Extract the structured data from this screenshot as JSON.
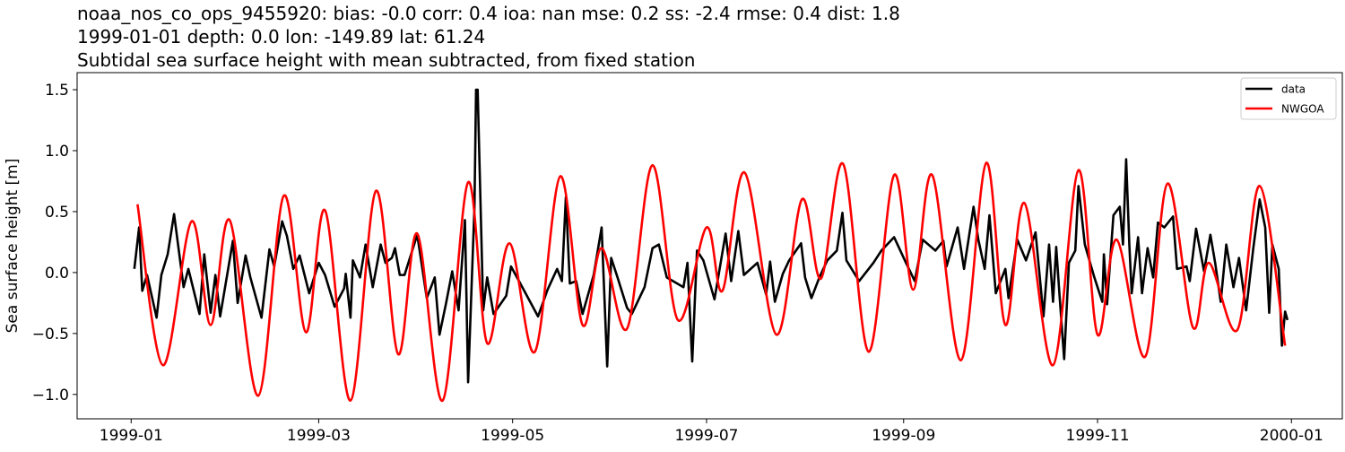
{
  "chart_data": {
    "type": "line",
    "title_lines": [
      "noaa_nos_co_ops_9455920: bias: -0.0  corr: 0.4  ioa: nan  mse: 0.2  ss: -2.4  rmse: 0.4  dist: 1.8",
      "1999-01-01 depth: 0.0 lon: -149.89 lat: 61.24",
      "Subtidal sea surface height with mean subtracted, from fixed station"
    ],
    "xlabel": "",
    "ylabel": "Sea surface height [m]",
    "xlim": [
      "1998-12-15",
      "2000-01-17"
    ],
    "ylim": [
      -1.2,
      1.64
    ],
    "xticks": [
      "1999-01",
      "1999-03",
      "1999-05",
      "1999-07",
      "1999-09",
      "1999-11",
      "2000-01"
    ],
    "yticks": [
      -1.0,
      -0.5,
      0.0,
      0.5,
      1.0,
      1.5
    ],
    "ytick_labels": [
      "−1.0",
      "−0.5",
      "0.0",
      "0.5",
      "1.0",
      "1.5"
    ],
    "grid": false,
    "legend_position": "top-right",
    "series": [
      {
        "name": "data",
        "color": "#000000",
        "points": [
          [
            "1999-01-02",
            0.03
          ],
          [
            "1999-01-03T12:00",
            0.37
          ],
          [
            "1999-01-04T12:00",
            -0.15
          ],
          [
            "1999-01-06",
            -0.02
          ],
          [
            "1999-01-09",
            -0.37
          ],
          [
            "1999-01-10T12:00",
            -0.02
          ],
          [
            "1999-01-12T12:00",
            0.15
          ],
          [
            "1999-01-14T12:00",
            0.48
          ],
          [
            "1999-01-16",
            0.18
          ],
          [
            "1999-01-17T12:00",
            -0.12
          ],
          [
            "1999-01-19",
            0.03
          ],
          [
            "1999-01-22T12:00",
            -0.34
          ],
          [
            "1999-01-24",
            0.15
          ],
          [
            "1999-01-26",
            -0.33
          ],
          [
            "1999-01-27T12:00",
            -0.02
          ],
          [
            "1999-01-29",
            -0.36
          ],
          [
            "1999-02-02",
            0.26
          ],
          [
            "1999-02-03T12:00",
            -0.25
          ],
          [
            "1999-02-06",
            0.14
          ],
          [
            "1999-02-07T12:00",
            -0.04
          ],
          [
            "1999-02-11",
            -0.37
          ],
          [
            "1999-02-13T12:00",
            0.19
          ],
          [
            "1999-02-15",
            0.05
          ],
          [
            "1999-02-17T12:00",
            0.42
          ],
          [
            "1999-02-19",
            0.3
          ],
          [
            "1999-02-21",
            0.03
          ],
          [
            "1999-02-23",
            0.14
          ],
          [
            "1999-02-26",
            -0.17
          ],
          [
            "1999-03-01",
            0.08
          ],
          [
            "1999-03-03",
            -0.02
          ],
          [
            "1999-03-06",
            -0.28
          ],
          [
            "1999-03-09",
            -0.13
          ],
          [
            "1999-03-09T12:00",
            -0.01
          ],
          [
            "1999-03-11",
            -0.37
          ],
          [
            "1999-03-11T18:00",
            0.1
          ],
          [
            "1999-03-14",
            -0.04
          ],
          [
            "1999-03-15T18:00",
            0.23
          ],
          [
            "1999-03-18",
            -0.12
          ],
          [
            "1999-03-20T12:00",
            0.23
          ],
          [
            "1999-03-22",
            0.08
          ],
          [
            "1999-03-24",
            0.12
          ],
          [
            "1999-03-25",
            0.2
          ],
          [
            "1999-03-26T12:00",
            -0.02
          ],
          [
            "1999-03-28",
            -0.02
          ],
          [
            "1999-04-01",
            0.31
          ],
          [
            "1999-04-04",
            -0.21
          ],
          [
            "1999-04-06T12:00",
            -0.04
          ],
          [
            "1999-04-08",
            -0.51
          ],
          [
            "1999-04-10",
            -0.26
          ],
          [
            "1999-04-12",
            0.01
          ],
          [
            "1999-04-14",
            -0.31
          ],
          [
            "1999-04-16",
            0.43
          ],
          [
            "1999-04-17",
            -0.9
          ],
          [
            "1999-04-19",
            0.54
          ],
          [
            "1999-04-19T12:00",
            1.5
          ],
          [
            "1999-04-20",
            1.5
          ],
          [
            "1999-04-21T18:00",
            -0.31
          ],
          [
            "1999-04-23",
            -0.04
          ],
          [
            "1999-04-25",
            -0.34
          ],
          [
            "1999-04-29",
            -0.19
          ],
          [
            "1999-04-30T12:00",
            0.05
          ],
          [
            "1999-05-03",
            -0.07
          ],
          [
            "1999-05-09",
            -0.36
          ],
          [
            "1999-05-12",
            -0.14
          ],
          [
            "1999-05-15",
            0.03
          ],
          [
            "1999-05-16T12:00",
            -0.07
          ],
          [
            "1999-05-17T18:00",
            0.62
          ],
          [
            "1999-05-19",
            -0.09
          ],
          [
            "1999-05-21",
            -0.07
          ],
          [
            "1999-05-23",
            -0.34
          ],
          [
            "1999-05-26T12:00",
            -0.02
          ],
          [
            "1999-05-29",
            0.37
          ],
          [
            "1999-05-30T18:00",
            -0.77
          ],
          [
            "1999-06-01",
            0.12
          ],
          [
            "1999-06-03",
            -0.04
          ],
          [
            "1999-06-06",
            -0.29
          ],
          [
            "1999-06-07T12:00",
            -0.34
          ],
          [
            "1999-06-11T12:00",
            -0.12
          ],
          [
            "1999-06-14",
            0.2
          ],
          [
            "1999-06-16",
            0.23
          ],
          [
            "1999-06-18T12:00",
            -0.04
          ],
          [
            "1999-06-23T18:00",
            -0.12
          ],
          [
            "1999-06-25",
            0.08
          ],
          [
            "1999-06-26T12:00",
            -0.73
          ],
          [
            "1999-06-28",
            0.18
          ],
          [
            "1999-06-30",
            0.1
          ],
          [
            "1999-07-03T12:00",
            -0.22
          ],
          [
            "1999-07-07",
            0.32
          ],
          [
            "1999-07-08T18:00",
            -0.07
          ],
          [
            "1999-07-11",
            0.34
          ],
          [
            "1999-07-12T18:00",
            -0.02
          ],
          [
            "1999-07-17",
            0.08
          ],
          [
            "1999-07-19T18:00",
            -0.18
          ],
          [
            "1999-07-21",
            0.09
          ],
          [
            "1999-07-22T12:00",
            -0.24
          ],
          [
            "1999-07-25",
            -0.01
          ],
          [
            "1999-07-27",
            0.1
          ],
          [
            "1999-07-30T18:00",
            0.24
          ],
          [
            "1999-08-01",
            -0.04
          ],
          [
            "1999-08-03",
            -0.21
          ],
          [
            "1999-08-05T12:00",
            -0.04
          ],
          [
            "1999-08-08",
            0.1
          ],
          [
            "1999-08-11",
            0.18
          ],
          [
            "1999-08-12T18:00",
            0.49
          ],
          [
            "1999-08-14",
            0.1
          ],
          [
            "1999-08-18",
            -0.07
          ],
          [
            "1999-08-22T12:00",
            0.08
          ],
          [
            "1999-08-25",
            0.18
          ],
          [
            "1999-08-29",
            0.29
          ],
          [
            "1999-09-01T18:00",
            0.08
          ],
          [
            "1999-09-04T12:00",
            -0.07
          ],
          [
            "1999-09-07",
            0.27
          ],
          [
            "1999-09-11",
            0.18
          ],
          [
            "1999-09-13T12:00",
            0.26
          ],
          [
            "1999-09-14T12:00",
            0.05
          ],
          [
            "1999-09-18",
            0.37
          ],
          [
            "1999-09-20",
            0.03
          ],
          [
            "1999-09-23",
            0.54
          ],
          [
            "1999-09-24T12:00",
            0.27
          ],
          [
            "1999-09-26T12:00",
            0.03
          ],
          [
            "1999-09-28",
            0.47
          ],
          [
            "1999-09-30",
            -0.17
          ],
          [
            "1999-10-03",
            0.03
          ],
          [
            "1999-10-04",
            -0.21
          ],
          [
            "1999-10-06T18:00",
            0.27
          ],
          [
            "1999-10-09T12:00",
            0.1
          ],
          [
            "1999-10-12T12:00",
            0.33
          ],
          [
            "1999-10-15",
            -0.36
          ],
          [
            "1999-10-16T18:00",
            0.23
          ],
          [
            "1999-10-18",
            -0.24
          ],
          [
            "1999-10-19",
            0.21
          ],
          [
            "1999-10-20",
            -0.17
          ],
          [
            "1999-10-21T12:00",
            -0.71
          ],
          [
            "1999-10-23",
            0.08
          ],
          [
            "1999-10-25",
            0.18
          ],
          [
            "1999-10-26",
            0.71
          ],
          [
            "1999-10-28",
            0.23
          ],
          [
            "1999-10-31",
            -0.04
          ],
          [
            "1999-11-02T12:00",
            -0.24
          ],
          [
            "1999-11-03",
            0.15
          ],
          [
            "1999-11-04",
            -0.26
          ],
          [
            "1999-11-06",
            0.47
          ],
          [
            "1999-11-08",
            0.54
          ],
          [
            "1999-11-09",
            0.23
          ],
          [
            "1999-11-10",
            0.93
          ],
          [
            "1999-11-11",
            0.23
          ],
          [
            "1999-11-11T18:00",
            -0.17
          ],
          [
            "1999-11-13T18:00",
            0.29
          ],
          [
            "1999-11-15",
            -0.17
          ],
          [
            "1999-11-16T18:00",
            0.2
          ],
          [
            "1999-11-18T12:00",
            -0.04
          ],
          [
            "1999-11-20",
            0.41
          ],
          [
            "1999-11-22",
            0.37
          ],
          [
            "1999-11-24T18:00",
            0.46
          ],
          [
            "1999-11-26",
            0.03
          ],
          [
            "1999-11-29",
            0.05
          ],
          [
            "1999-11-30",
            -0.07
          ],
          [
            "1999-12-02",
            0.36
          ],
          [
            "1999-12-04T12:00",
            0.01
          ],
          [
            "1999-12-06T12:00",
            0.31
          ],
          [
            "1999-12-08",
            0.08
          ],
          [
            "1999-12-09T18:00",
            -0.24
          ],
          [
            "1999-12-11T12:00",
            0.23
          ],
          [
            "1999-12-13T18:00",
            -0.12
          ],
          [
            "1999-12-15T12:00",
            0.12
          ],
          [
            "1999-12-17T18:00",
            -0.31
          ],
          [
            "1999-12-20",
            0.2
          ],
          [
            "1999-12-22",
            0.6
          ],
          [
            "1999-12-23T18:00",
            0.37
          ],
          [
            "1999-12-25",
            -0.33
          ],
          [
            "1999-12-26",
            0.23
          ],
          [
            "1999-12-28",
            0.03
          ],
          [
            "1999-12-29",
            -0.6
          ],
          [
            "1999-12-30",
            -0.32
          ],
          [
            "1999-12-30T18:00",
            -0.39
          ]
        ]
      },
      {
        "name": "NWGOA",
        "color": "#ff0000",
        "points": [
          [
            "1999-01-03",
            0.56
          ],
          [
            "1999-01-11",
            -0.76
          ],
          [
            "1999-01-20",
            0.42
          ],
          [
            "1999-01-26",
            -0.43
          ],
          [
            "1999-02-01",
            0.43
          ],
          [
            "1999-02-10",
            -1.01
          ],
          [
            "1999-02-18",
            0.63
          ],
          [
            "1999-02-25",
            -0.49
          ],
          [
            "1999-03-03",
            0.51
          ],
          [
            "1999-03-11",
            -1.05
          ],
          [
            "1999-03-19",
            0.67
          ],
          [
            "1999-03-26",
            -0.67
          ],
          [
            "1999-04-01",
            0.32
          ],
          [
            "1999-04-09",
            -1.05
          ],
          [
            "1999-04-17",
            0.74
          ],
          [
            "1999-04-23",
            -0.58
          ],
          [
            "1999-04-30",
            0.24
          ],
          [
            "1999-05-08",
            -0.65
          ],
          [
            "1999-05-16",
            0.79
          ],
          [
            "1999-05-23",
            -0.43
          ],
          [
            "1999-05-29",
            0.2
          ],
          [
            "1999-06-06",
            -0.46
          ],
          [
            "1999-06-14",
            0.88
          ],
          [
            "1999-06-22",
            -0.39
          ],
          [
            "1999-07-01",
            0.37
          ],
          [
            "1999-07-06",
            -0.15
          ],
          [
            "1999-07-13",
            0.82
          ],
          [
            "1999-07-23",
            -0.51
          ],
          [
            "1999-07-31",
            0.6
          ],
          [
            "1999-08-06",
            -0.05
          ],
          [
            "1999-08-13",
            0.89
          ],
          [
            "1999-08-21",
            -0.65
          ],
          [
            "1999-08-29",
            0.8
          ],
          [
            "1999-09-04",
            -0.14
          ],
          [
            "1999-09-10",
            0.8
          ],
          [
            "1999-09-19",
            -0.72
          ],
          [
            "1999-09-27",
            0.9
          ],
          [
            "1999-10-03",
            -0.43
          ],
          [
            "1999-10-09",
            0.57
          ],
          [
            "1999-10-18",
            -0.76
          ],
          [
            "1999-10-26",
            0.84
          ],
          [
            "1999-11-01",
            -0.51
          ],
          [
            "1999-11-07",
            0.27
          ],
          [
            "1999-11-16",
            -0.69
          ],
          [
            "1999-11-23",
            0.73
          ],
          [
            "1999-12-01",
            -0.45
          ],
          [
            "1999-12-06",
            0.08
          ],
          [
            "1999-12-15",
            -0.47
          ],
          [
            "1999-12-22",
            0.71
          ],
          [
            "1999-12-30",
            -0.6
          ]
        ]
      }
    ]
  }
}
